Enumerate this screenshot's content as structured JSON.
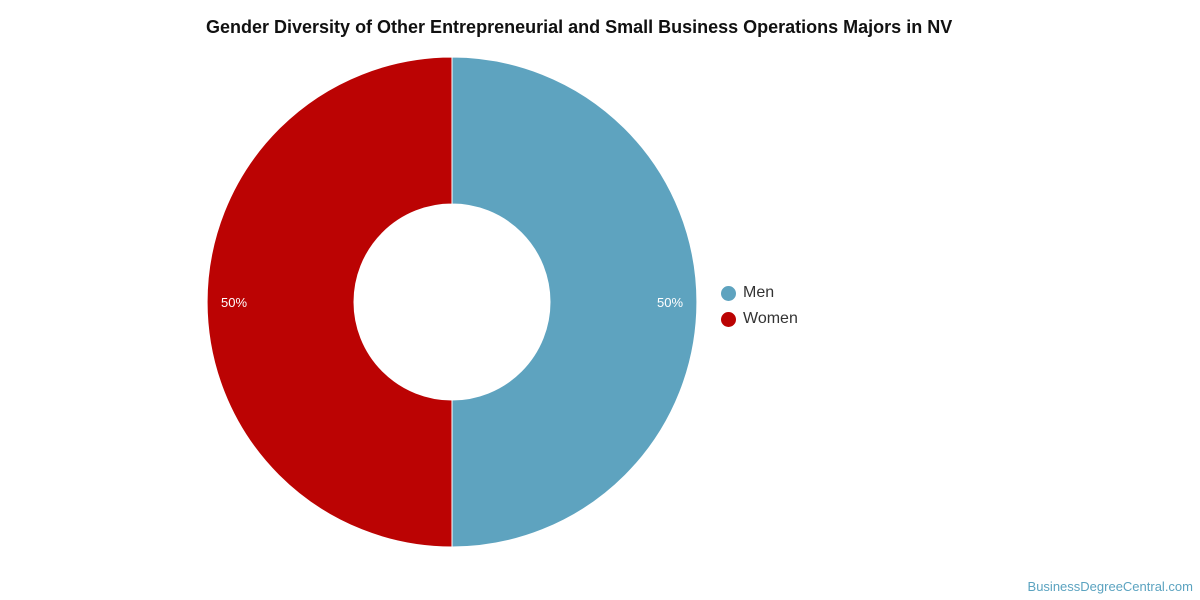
{
  "chart_data": {
    "type": "pie",
    "title": "Gender Diversity of Other Entrepreneurial and Small Business Operations Majors in NV",
    "categories": [
      "Men",
      "Women"
    ],
    "values": [
      50,
      50
    ],
    "value_labels": [
      "50%",
      "50%"
    ],
    "colors": [
      "#5ea3bf",
      "#bb0303"
    ],
    "legend_position": "right"
  },
  "watermark": "BusinessDegreeCentral.com"
}
